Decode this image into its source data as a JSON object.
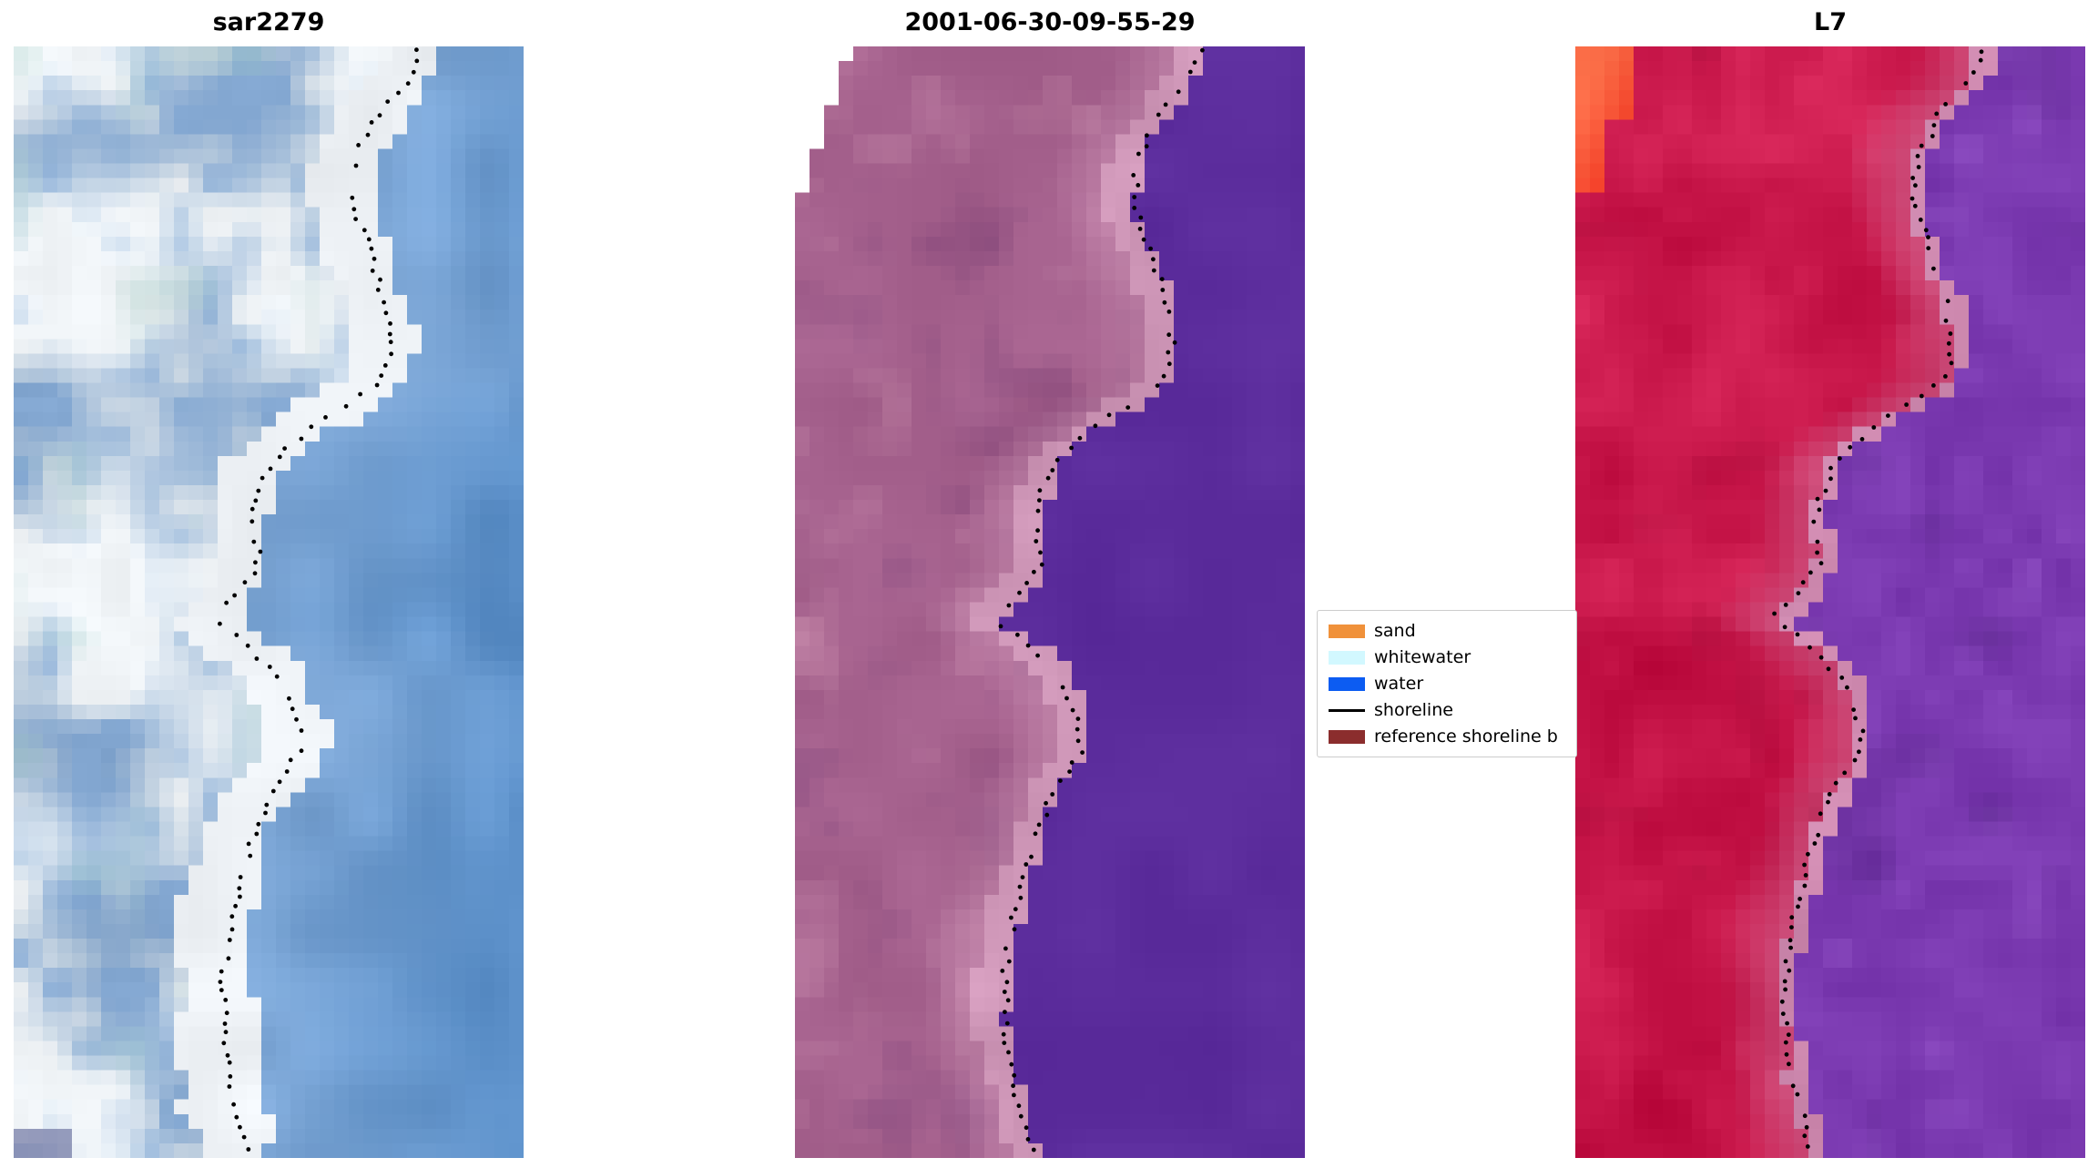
{
  "figure": {
    "background": "#ffffff",
    "kind": "matplotlib-style satellite shoreline figure, three image panels with dotted shoreline overlay"
  },
  "legend": {
    "items": [
      {
        "label": "sand",
        "color": "#f0913a",
        "kind": "patch"
      },
      {
        "label": "whitewater",
        "color": "#d2f8ff",
        "kind": "patch"
      },
      {
        "label": "water",
        "color": "#0c5cf2",
        "kind": "patch"
      },
      {
        "label": "shoreline",
        "color": "#000000",
        "kind": "line"
      },
      {
        "label": "reference shoreline b",
        "color": "#8b2d2d",
        "kind": "patch"
      }
    ]
  },
  "chart_data": {
    "type": "image",
    "subtype": "satellite-shoreline-triptych",
    "panels": [
      {
        "title": "sar2279",
        "style": "sar"
      },
      {
        "title": "2001-06-30-09-55-29",
        "style": "classified"
      },
      {
        "title": "L7",
        "style": "landsat7"
      }
    ],
    "grid": {
      "cols": 35,
      "rows": 76
    },
    "shoreline_norm_points": [
      [
        0.0,
        0.8
      ],
      [
        0.03,
        0.775
      ],
      [
        0.06,
        0.715
      ],
      [
        0.1,
        0.67
      ],
      [
        0.14,
        0.665
      ],
      [
        0.18,
        0.695
      ],
      [
        0.23,
        0.725
      ],
      [
        0.27,
        0.74
      ],
      [
        0.3,
        0.725
      ],
      [
        0.32,
        0.66
      ],
      [
        0.345,
        0.575
      ],
      [
        0.375,
        0.505
      ],
      [
        0.42,
        0.47
      ],
      [
        0.465,
        0.48
      ],
      [
        0.495,
        0.435
      ],
      [
        0.515,
        0.385
      ],
      [
        0.535,
        0.45
      ],
      [
        0.565,
        0.515
      ],
      [
        0.6,
        0.555
      ],
      [
        0.635,
        0.56
      ],
      [
        0.67,
        0.505
      ],
      [
        0.72,
        0.462
      ],
      [
        0.78,
        0.432
      ],
      [
        0.84,
        0.41
      ],
      [
        0.9,
        0.415
      ],
      [
        0.95,
        0.435
      ],
      [
        1.0,
        0.468
      ]
    ],
    "dot_color": "#000000",
    "legend_position": "center, between second and third panel",
    "palettes": {
      "sar": {
        "water": "#5e92cb",
        "water_light": "#8fb3dd",
        "beach": "#eef2f6",
        "land_light": "#f3f7fa",
        "land_mid": "#c2d3e4",
        "land_dark": "#7ea2cc",
        "teal": "#a5cdc6",
        "corner_dark": "#5f6496"
      },
      "classified": {
        "water": "#5b2c9c",
        "fringe": "#cf97b8",
        "land": "#a5618d",
        "land_light": "#c487a8",
        "land_dark": "#8a4c7e",
        "nodata": "#ffffff"
      },
      "landsat7": {
        "land": "#c8174a",
        "land_dark": "#a80f3c",
        "hot1": "#f53b26",
        "hot2": "#ff8055",
        "fringe": "#cd88ae",
        "water": "#7b3ab1",
        "water_dark": "#622d94",
        "water_light": "#9254c4"
      }
    }
  }
}
